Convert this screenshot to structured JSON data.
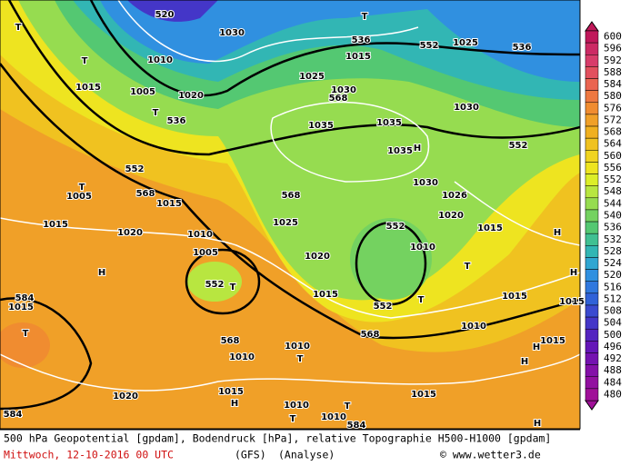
{
  "map": {
    "labels": [
      "520",
      "1030",
      "536",
      "T",
      "1015",
      "552",
      "1025",
      "536",
      "T",
      "T",
      "1010",
      "1015",
      "1005",
      "1020",
      "T",
      "536",
      "1025",
      "1030",
      "568",
      "1035",
      "1035",
      "1030",
      "H",
      "1035",
      "552",
      "552",
      "1030",
      "1026",
      "T",
      "1005",
      "568",
      "568",
      "1015",
      "1025",
      "1020",
      "1015",
      "1015",
      "1020",
      "1010",
      "552",
      "1010",
      "1020",
      "1005",
      "H",
      "H",
      "552",
      "T",
      "T",
      "H",
      "1015",
      "T",
      "552",
      "1015",
      "584",
      "1015",
      "T",
      "1015",
      "1010",
      "568",
      "568",
      "1010",
      "T",
      "1010",
      "1015",
      "H",
      "H",
      "1020",
      "1015",
      "1010",
      "1015",
      "H",
      "T",
      "T",
      "1010",
      "584",
      "584",
      "H"
    ]
  },
  "legend": {
    "values": [
      600,
      596,
      592,
      588,
      584,
      580,
      576,
      572,
      568,
      564,
      560,
      556,
      552,
      548,
      544,
      540,
      536,
      532,
      528,
      524,
      520,
      516,
      512,
      508,
      504,
      500,
      496,
      492,
      488,
      484,
      480
    ],
    "colors": [
      "#c0185a",
      "#cc2a64",
      "#d83c6a",
      "#e2505e",
      "#ea6450",
      "#ee7840",
      "#f08c30",
      "#f0a028",
      "#f0b020",
      "#f0c220",
      "#f0d420",
      "#eee420",
      "#dcee28",
      "#b8e640",
      "#96dc50",
      "#74d260",
      "#54c872",
      "#40c092",
      "#32b6b4",
      "#30a6d2",
      "#3090e0",
      "#3078de",
      "#3062d8",
      "#3a4ad0",
      "#4436c8",
      "#5424c0",
      "#6416b8",
      "#7412b0",
      "#8410a8",
      "#9210a0",
      "#a01098"
    ]
  },
  "footer": {
    "line1": "500 hPa Geopotential [gpdam], Bodendruck [hPa], relative Topographie H500-H1000 [gpdam]",
    "date": "Mittwoch, 12-10-2016  00 UTC",
    "model": "(GFS)",
    "run": "(Analyse)",
    "copyright": "© www.wetter3.de"
  }
}
